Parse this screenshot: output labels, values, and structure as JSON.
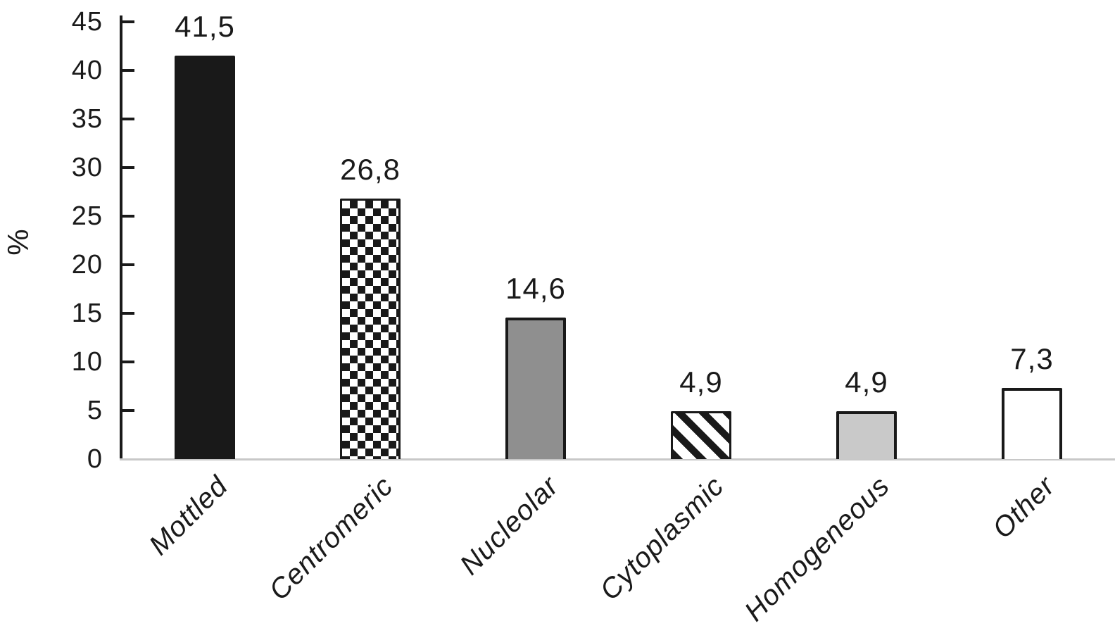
{
  "chart_data": {
    "type": "bar",
    "title": "",
    "xlabel": "",
    "ylabel": "%",
    "ylim": [
      0,
      45
    ],
    "ytick_step": 5,
    "grid": false,
    "legend": "none",
    "decimal_separator": ",",
    "categories": [
      "Mottled",
      "Centromeric",
      "Nucleolar",
      "Cytoplasmic",
      "Homogeneous",
      "Other"
    ],
    "values": [
      41.5,
      26.8,
      14.6,
      4.9,
      4.9,
      7.3
    ],
    "value_labels": [
      "41,5",
      "26,8",
      "14,6",
      "4,9",
      "4,9",
      "7,3"
    ],
    "bar_patterns": [
      "solid-black",
      "checkerboard",
      "gray",
      "diagonal-stripes",
      "light-gray",
      "white"
    ],
    "colors": {
      "ink": "#1a1a1a",
      "bar_black": "#191919",
      "bar_gray": "#8f8f8f",
      "bar_light_gray": "#c9c9c9",
      "bar_white": "#ffffff",
      "baseline": "#c8c8c8",
      "background": "#ffffff"
    }
  }
}
